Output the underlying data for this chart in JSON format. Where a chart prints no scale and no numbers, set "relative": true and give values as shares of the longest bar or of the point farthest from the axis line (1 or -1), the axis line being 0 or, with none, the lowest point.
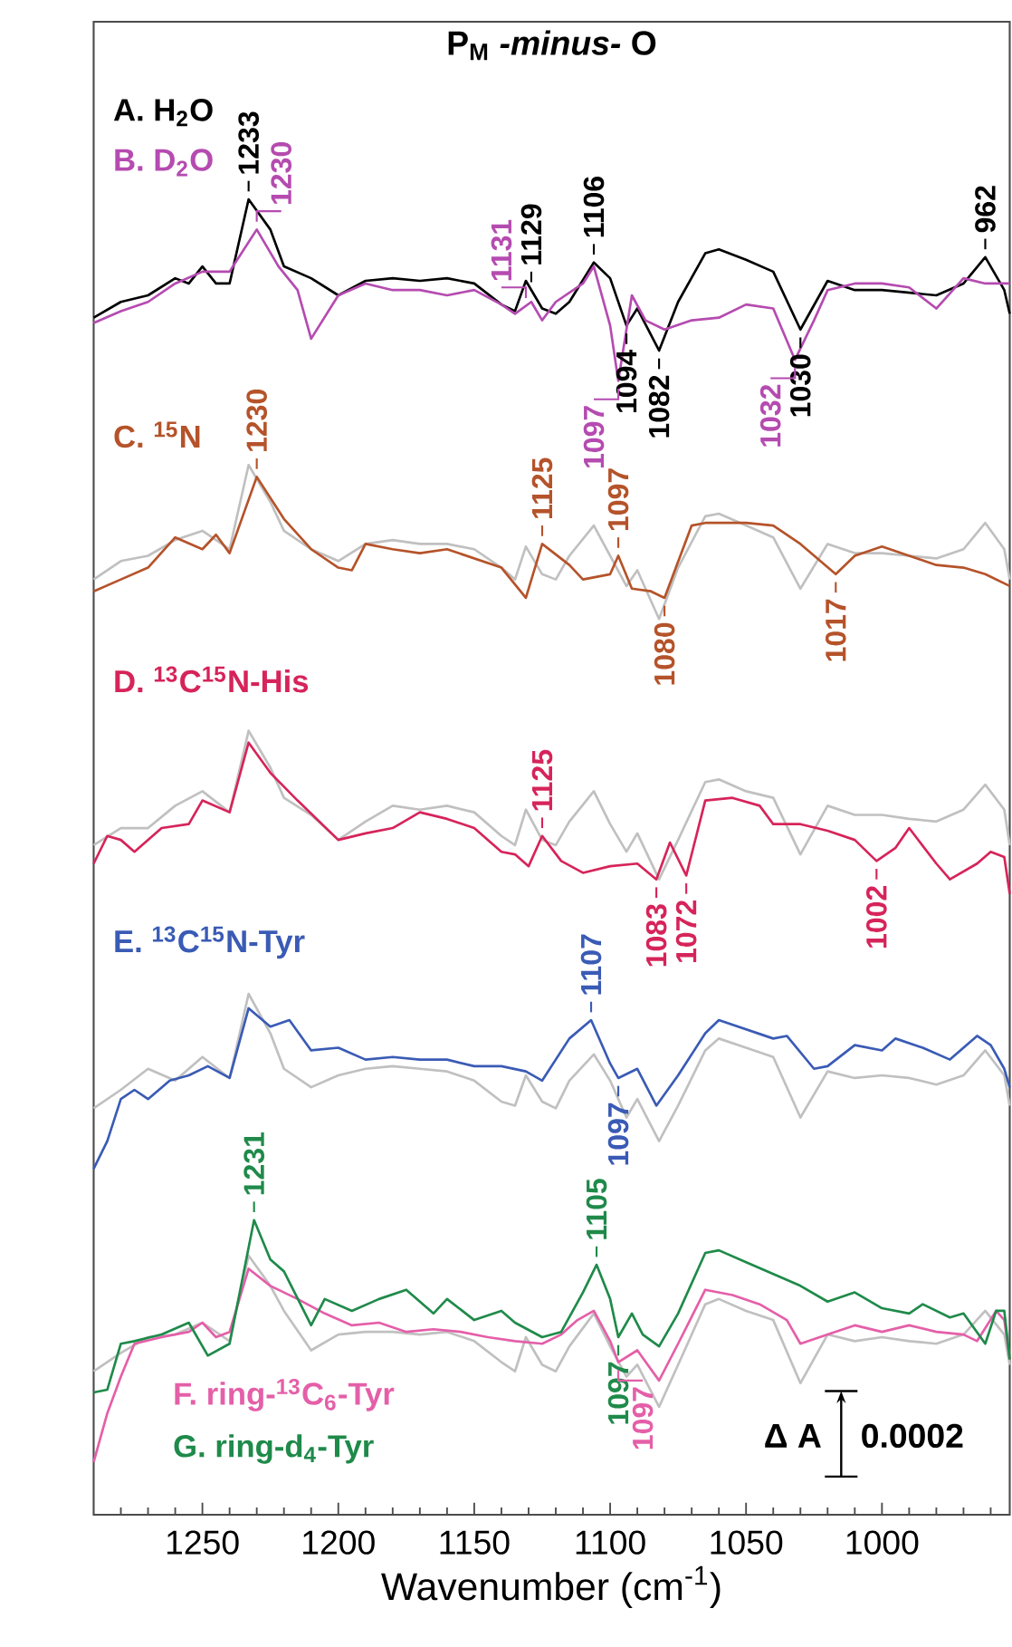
{
  "chart_data": {
    "type": "line",
    "title": "P$_{M}$ *-minus-* O",
    "xlabel": "Wavenumber (cm$^{-1}$)",
    "relative": true,
    "xlim": [
      1290,
      953
    ],
    "xticks": [
      {
        "value": 1280,
        "label": null
      },
      {
        "value": 1270,
        "label": null
      },
      {
        "value": 1260,
        "label": null
      },
      1250,
      {
        "value": 1240,
        "label": null
      },
      {
        "value": 1230,
        "label": null
      },
      {
        "value": 1220,
        "label": null
      },
      {
        "value": 1210,
        "label": null
      },
      1200,
      {
        "value": 1190,
        "label": null
      },
      {
        "value": 1180,
        "label": null
      },
      {
        "value": 1170,
        "label": null
      },
      {
        "value": 1160,
        "label": null
      },
      1150,
      {
        "value": 1140,
        "label": null
      },
      {
        "value": 1130,
        "label": null
      },
      {
        "value": 1120,
        "label": null
      },
      {
        "value": 1110,
        "label": null
      },
      1100,
      {
        "value": 1090,
        "label": null
      },
      {
        "value": 1080,
        "label": null
      },
      {
        "value": 1070,
        "label": null
      },
      {
        "value": 1060,
        "label": null
      },
      1050,
      {
        "value": 1040,
        "label": null
      },
      {
        "value": 1030,
        "label": null
      },
      {
        "value": 1020,
        "label": null
      },
      {
        "value": 1010,
        "label": null
      },
      1000,
      {
        "value": 990,
        "label": null
      },
      {
        "value": 980,
        "label": null
      },
      {
        "value": 970,
        "label": null
      },
      {
        "value": 960,
        "label": null
      }
    ],
    "series": [
      {
        "name": "A. H$_{2}$O",
        "color": "#000000",
        "x": [
          1290,
          1280,
          1270,
          1260,
          1255,
          1250,
          1245,
          1240,
          1233,
          1225,
          1220,
          1210,
          1200,
          1190,
          1180,
          1170,
          1160,
          1150,
          1140,
          1135,
          1131,
          1125,
          1120,
          1115,
          1106,
          1100,
          1094,
          1090,
          1082,
          1075,
          1065,
          1060,
          1050,
          1040,
          1030,
          1020,
          1010,
          1000,
          990,
          980,
          970,
          962,
          955,
          953
        ],
        "values": [
          0.91,
          0.922,
          0.927,
          0.94,
          0.936,
          0.949,
          0.936,
          0.936,
          1.0,
          0.977,
          0.949,
          0.94,
          0.927,
          0.938,
          0.94,
          0.938,
          0.94,
          0.936,
          0.92,
          0.915,
          0.938,
          0.917,
          0.913,
          0.922,
          0.952,
          0.94,
          0.904,
          0.917,
          0.885,
          0.922,
          0.959,
          0.962,
          0.954,
          0.945,
          0.901,
          0.938,
          0.931,
          0.931,
          0.929,
          0.927,
          0.936,
          0.956,
          0.931,
          0.913
        ]
      },
      {
        "name": "B. D$_{2}$O",
        "color": "#b54bb0",
        "x": [
          1290,
          1280,
          1270,
          1260,
          1250,
          1240,
          1230,
          1222,
          1215,
          1210,
          1200,
          1190,
          1180,
          1170,
          1160,
          1150,
          1140,
          1135,
          1129,
          1125,
          1120,
          1110,
          1106,
          1100,
          1097,
          1092,
          1087,
          1080,
          1070,
          1060,
          1050,
          1040,
          1032,
          1025,
          1020,
          1010,
          1000,
          990,
          980,
          970,
          962,
          953
        ],
        "values": [
          0.906,
          0.915,
          0.922,
          0.936,
          0.945,
          0.945,
          0.977,
          0.949,
          0.931,
          0.894,
          0.927,
          0.936,
          0.931,
          0.931,
          0.927,
          0.931,
          0.92,
          0.913,
          0.922,
          0.908,
          0.922,
          0.936,
          0.949,
          0.904,
          0.862,
          0.927,
          0.908,
          0.901,
          0.908,
          0.91,
          0.92,
          0.917,
          0.878,
          0.908,
          0.931,
          0.936,
          0.936,
          0.933,
          0.917,
          0.94,
          0.936,
          0.936
        ]
      },
      {
        "color": "#c0c0c0",
        "x": [
          1290,
          1280,
          1270,
          1260,
          1250,
          1240,
          1233,
          1225,
          1220,
          1210,
          1200,
          1190,
          1180,
          1170,
          1160,
          1150,
          1140,
          1135,
          1131,
          1125,
          1120,
          1115,
          1106,
          1100,
          1094,
          1090,
          1082,
          1075,
          1065,
          1060,
          1050,
          1040,
          1030,
          1020,
          1010,
          1000,
          990,
          980,
          970,
          962,
          955,
          953
        ],
        "values": [
          0.711,
          0.725,
          0.729,
          0.741,
          0.748,
          0.734,
          0.798,
          0.77,
          0.748,
          0.734,
          0.725,
          0.738,
          0.741,
          0.738,
          0.738,
          0.734,
          0.72,
          0.711,
          0.736,
          0.715,
          0.711,
          0.729,
          0.752,
          0.729,
          0.706,
          0.718,
          0.681,
          0.72,
          0.759,
          0.761,
          0.752,
          0.743,
          0.704,
          0.738,
          0.731,
          0.731,
          0.729,
          0.727,
          0.734,
          0.754,
          0.734,
          0.711
        ]
      },
      {
        "name": "C. $^{15}$N",
        "color": "#b5532a",
        "x": [
          1290,
          1280,
          1270,
          1260,
          1250,
          1245,
          1240,
          1230,
          1220,
          1210,
          1200,
          1195,
          1190,
          1180,
          1170,
          1160,
          1150,
          1140,
          1131,
          1125,
          1115,
          1110,
          1100,
          1097,
          1092,
          1085,
          1080,
          1070,
          1065,
          1050,
          1040,
          1030,
          1017,
          1010,
          1000,
          990,
          980,
          970,
          962,
          953
        ],
        "values": [
          0.702,
          0.711,
          0.72,
          0.743,
          0.734,
          0.745,
          0.731,
          0.789,
          0.757,
          0.734,
          0.72,
          0.718,
          0.738,
          0.734,
          0.731,
          0.734,
          0.727,
          0.72,
          0.697,
          0.738,
          0.722,
          0.711,
          0.715,
          0.729,
          0.704,
          0.702,
          0.697,
          0.752,
          0.754,
          0.754,
          0.752,
          0.738,
          0.715,
          0.729,
          0.736,
          0.729,
          0.722,
          0.72,
          0.715,
          0.706
        ]
      },
      {
        "color": "#c0c0c0",
        "x": [
          1290,
          1280,
          1270,
          1260,
          1250,
          1240,
          1233,
          1225,
          1220,
          1210,
          1200,
          1190,
          1180,
          1170,
          1160,
          1150,
          1140,
          1135,
          1131,
          1125,
          1120,
          1115,
          1106,
          1100,
          1094,
          1090,
          1082,
          1075,
          1065,
          1060,
          1050,
          1040,
          1030,
          1020,
          1010,
          1000,
          990,
          980,
          970,
          962,
          955,
          953
        ],
        "values": [
          0.509,
          0.522,
          0.522,
          0.539,
          0.55,
          0.534,
          0.596,
          0.568,
          0.545,
          0.532,
          0.513,
          0.527,
          0.539,
          0.536,
          0.539,
          0.534,
          0.516,
          0.509,
          0.536,
          0.513,
          0.509,
          0.527,
          0.55,
          0.525,
          0.504,
          0.518,
          0.483,
          0.513,
          0.557,
          0.559,
          0.55,
          0.545,
          0.502,
          0.539,
          0.532,
          0.532,
          0.529,
          0.527,
          0.536,
          0.555,
          0.536,
          0.509
        ]
      },
      {
        "name": "D. $^{13}$C$^{15}$N-His",
        "color": "#d6245a",
        "x": [
          1290,
          1285,
          1280,
          1275,
          1265,
          1255,
          1250,
          1240,
          1233,
          1225,
          1215,
          1200,
          1190,
          1180,
          1170,
          1160,
          1150,
          1140,
          1135,
          1130,
          1125,
          1118,
          1110,
          1100,
          1090,
          1083,
          1078,
          1072,
          1065,
          1055,
          1045,
          1040,
          1030,
          1020,
          1010,
          1002,
          995,
          990,
          980,
          975,
          965,
          960,
          955,
          953
        ],
        "values": [
          0.495,
          0.516,
          0.513,
          0.504,
          0.522,
          0.525,
          0.543,
          0.534,
          0.587,
          0.564,
          0.543,
          0.513,
          0.518,
          0.522,
          0.534,
          0.529,
          0.522,
          0.504,
          0.502,
          0.493,
          0.516,
          0.497,
          0.488,
          0.493,
          0.495,
          0.483,
          0.511,
          0.486,
          0.543,
          0.545,
          0.539,
          0.525,
          0.525,
          0.52,
          0.513,
          0.497,
          0.507,
          0.522,
          0.495,
          0.483,
          0.495,
          0.504,
          0.5,
          0.472
        ]
      },
      {
        "color": "#c0c0c0",
        "x": [
          1290,
          1280,
          1270,
          1260,
          1250,
          1240,
          1233,
          1225,
          1220,
          1210,
          1200,
          1190,
          1180,
          1170,
          1160,
          1150,
          1140,
          1135,
          1131,
          1125,
          1120,
          1115,
          1106,
          1100,
          1094,
          1090,
          1082,
          1075,
          1065,
          1060,
          1050,
          1040,
          1030,
          1020,
          1010,
          1000,
          990,
          980,
          970,
          962,
          955,
          953
        ],
        "values": [
          0.309,
          0.323,
          0.339,
          0.33,
          0.348,
          0.332,
          0.396,
          0.366,
          0.339,
          0.325,
          0.334,
          0.339,
          0.341,
          0.339,
          0.337,
          0.33,
          0.314,
          0.311,
          0.334,
          0.314,
          0.309,
          0.33,
          0.35,
          0.33,
          0.302,
          0.316,
          0.284,
          0.311,
          0.353,
          0.362,
          0.355,
          0.348,
          0.302,
          0.337,
          0.332,
          0.334,
          0.332,
          0.327,
          0.334,
          0.353,
          0.334,
          0.311
        ]
      },
      {
        "name": "E. $^{13}$C$^{15}$N-Tyr",
        "color": "#3a5bb5",
        "x": [
          1290,
          1285,
          1280,
          1275,
          1270,
          1262,
          1255,
          1248,
          1240,
          1233,
          1225,
          1218,
          1210,
          1200,
          1190,
          1180,
          1170,
          1160,
          1150,
          1140,
          1131,
          1125,
          1115,
          1107,
          1100,
          1097,
          1090,
          1083,
          1075,
          1065,
          1060,
          1050,
          1040,
          1035,
          1025,
          1020,
          1010,
          1000,
          995,
          985,
          975,
          965,
          960,
          955,
          953
        ],
        "values": [
          0.263,
          0.284,
          0.316,
          0.323,
          0.316,
          0.33,
          0.334,
          0.341,
          0.332,
          0.385,
          0.371,
          0.376,
          0.353,
          0.355,
          0.346,
          0.348,
          0.346,
          0.346,
          0.341,
          0.341,
          0.337,
          0.33,
          0.362,
          0.376,
          0.343,
          0.332,
          0.339,
          0.311,
          0.334,
          0.366,
          0.376,
          0.369,
          0.362,
          0.364,
          0.339,
          0.341,
          0.357,
          0.353,
          0.362,
          0.355,
          0.346,
          0.364,
          0.357,
          0.339,
          0.325
        ]
      },
      {
        "color": "#c0c0c0",
        "x": [
          1290,
          1280,
          1270,
          1260,
          1250,
          1240,
          1233,
          1225,
          1220,
          1210,
          1200,
          1190,
          1180,
          1170,
          1160,
          1150,
          1140,
          1135,
          1131,
          1125,
          1120,
          1115,
          1106,
          1100,
          1094,
          1090,
          1082,
          1075,
          1065,
          1060,
          1050,
          1040,
          1030,
          1020,
          1010,
          1000,
          990,
          980,
          970,
          962,
          955,
          953
        ],
        "values": [
          0.109,
          0.123,
          0.135,
          0.137,
          0.146,
          0.132,
          0.197,
          0.174,
          0.155,
          0.125,
          0.137,
          0.139,
          0.139,
          0.137,
          0.139,
          0.132,
          0.116,
          0.109,
          0.135,
          0.114,
          0.109,
          0.128,
          0.153,
          0.128,
          0.105,
          0.114,
          0.082,
          0.114,
          0.16,
          0.164,
          0.155,
          0.148,
          0.1,
          0.137,
          0.132,
          0.135,
          0.132,
          0.13,
          0.137,
          0.155,
          0.137,
          0.114
        ]
      },
      {
        "name": "F. ring-$^{13}$C$_{6}$-Tyr",
        "color": "#e45fa8",
        "x": [
          1290,
          1285,
          1280,
          1275,
          1265,
          1255,
          1250,
          1245,
          1240,
          1233,
          1225,
          1215,
          1205,
          1195,
          1185,
          1175,
          1165,
          1155,
          1145,
          1135,
          1125,
          1118,
          1112,
          1106,
          1100,
          1097,
          1090,
          1082,
          1075,
          1065,
          1055,
          1045,
          1035,
          1030,
          1020,
          1010,
          1000,
          990,
          980,
          970,
          965,
          958,
          955,
          953
        ],
        "values": [
          0.04,
          0.077,
          0.105,
          0.13,
          0.135,
          0.139,
          0.146,
          0.135,
          0.139,
          0.187,
          0.174,
          0.164,
          0.153,
          0.144,
          0.146,
          0.139,
          0.141,
          0.139,
          0.135,
          0.132,
          0.13,
          0.137,
          0.148,
          0.155,
          0.132,
          0.116,
          0.125,
          0.102,
          0.13,
          0.171,
          0.167,
          0.16,
          0.148,
          0.13,
          0.137,
          0.144,
          0.139,
          0.144,
          0.139,
          0.137,
          0.132,
          0.155,
          0.148,
          0.118
        ]
      },
      {
        "name": "G. ring-d$_{4}$-Tyr",
        "color": "#1f8a4a",
        "x": [
          1290,
          1285,
          1280,
          1275,
          1265,
          1255,
          1248,
          1240,
          1231,
          1225,
          1220,
          1210,
          1205,
          1195,
          1185,
          1175,
          1165,
          1160,
          1150,
          1140,
          1135,
          1125,
          1118,
          1110,
          1105,
          1100,
          1097,
          1092,
          1088,
          1082,
          1075,
          1065,
          1060,
          1050,
          1040,
          1030,
          1020,
          1010,
          1000,
          990,
          985,
          975,
          970,
          962,
          958,
          955,
          953
        ],
        "values": [
          0.093,
          0.095,
          0.13,
          0.132,
          0.137,
          0.146,
          0.121,
          0.13,
          0.224,
          0.194,
          0.185,
          0.144,
          0.164,
          0.155,
          0.164,
          0.171,
          0.153,
          0.164,
          0.148,
          0.155,
          0.146,
          0.135,
          0.139,
          0.169,
          0.19,
          0.164,
          0.135,
          0.153,
          0.137,
          0.128,
          0.153,
          0.199,
          0.201,
          0.192,
          0.183,
          0.174,
          0.162,
          0.169,
          0.157,
          0.153,
          0.16,
          0.15,
          0.153,
          0.13,
          0.155,
          0.155,
          0.118
        ]
      }
    ],
    "annotations": [
      {
        "text": "1233",
        "x": 1233,
        "y": 1.0
      },
      {
        "text": "1129",
        "x": 1129,
        "y": 0.931
      },
      {
        "text": "1106",
        "x": 1106,
        "y": 0.952
      },
      {
        "text": "1094",
        "x": 1094,
        "y": 0.904
      },
      {
        "text": "1082",
        "x": 1082,
        "y": 0.885
      },
      {
        "text": "1030",
        "x": 1030,
        "y": 0.901
      },
      {
        "text": "962",
        "x": 962,
        "y": 0.956
      },
      {
        "text": "1230",
        "x": 1230,
        "y": 0.977
      },
      {
        "text": "1131",
        "x": 1131,
        "y": 0.919
      },
      {
        "text": "1097",
        "x": 1097,
        "y": 0.862
      },
      {
        "text": "1032",
        "x": 1032,
        "y": 0.878
      },
      {
        "text": "1230",
        "x": 1230,
        "y": 0.789
      },
      {
        "text": "1125",
        "x": 1125,
        "y": 0.738
      },
      {
        "text": "1097",
        "x": 1097,
        "y": 0.729
      },
      {
        "text": "1080",
        "x": 1080,
        "y": 0.697
      },
      {
        "text": "1017",
        "x": 1017,
        "y": 0.715
      },
      {
        "text": "1125",
        "x": 1125,
        "y": 0.516
      },
      {
        "text": "1083",
        "x": 1083,
        "y": 0.483
      },
      {
        "text": "1072",
        "x": 1072,
        "y": 0.486
      },
      {
        "text": "1002",
        "x": 1002,
        "y": 0.497
      },
      {
        "text": "1107",
        "x": 1107,
        "y": 0.376
      },
      {
        "text": "1097",
        "x": 1097,
        "y": 0.332
      },
      {
        "text": "1231",
        "x": 1231,
        "y": 0.224
      },
      {
        "text": "1105",
        "x": 1105,
        "y": 0.19
      },
      {
        "text": "1097",
        "x": 1097,
        "y": 0.135
      },
      {
        "text": "1097",
        "x": 1097,
        "y": 0.116
      },
      "Δ A",
      "0.0002"
    ]
  }
}
